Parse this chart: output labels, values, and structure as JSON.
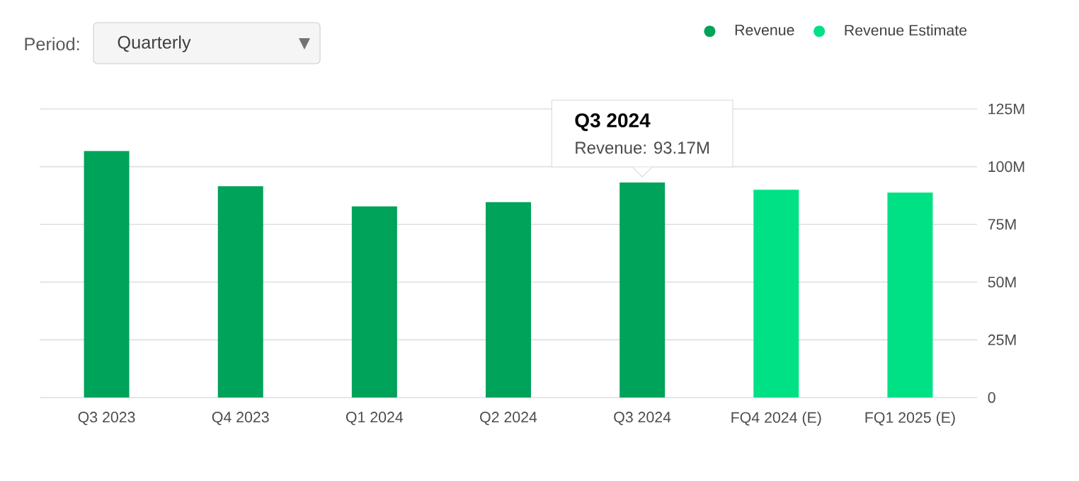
{
  "chart_data": {
    "type": "bar",
    "categories": [
      "Q3 2023",
      "Q4 2023",
      "Q1 2024",
      "Q2 2024",
      "Q3 2024",
      "FQ4 2024 (E)",
      "FQ1 2025 (E)"
    ],
    "series": [
      {
        "name": "Revenue",
        "color": "#00a35a",
        "values": [
          106.8,
          91.5,
          82.8,
          84.6,
          93.17,
          null,
          null
        ]
      },
      {
        "name": "Revenue Estimate",
        "color": "#00e085",
        "values": [
          null,
          null,
          null,
          null,
          null,
          90.0,
          88.8
        ]
      }
    ],
    "ylim": [
      0,
      125
    ],
    "yticks": [
      {
        "value": 0,
        "label": "0"
      },
      {
        "value": 25,
        "label": "25M"
      },
      {
        "value": 50,
        "label": "50M"
      },
      {
        "value": 75,
        "label": "75M"
      },
      {
        "value": 100,
        "label": "100M"
      },
      {
        "value": 125,
        "label": "125M"
      }
    ],
    "grid": "y",
    "legend": "top right",
    "annotations": [
      "Period:",
      "Quarterly",
      {
        "text": "Q3 2024",
        "x": "Q3 2024",
        "y": 93.17
      },
      {
        "text": "Revenue:   93.17M",
        "x": "Q3 2024",
        "y": 93.17
      }
    ]
  }
}
